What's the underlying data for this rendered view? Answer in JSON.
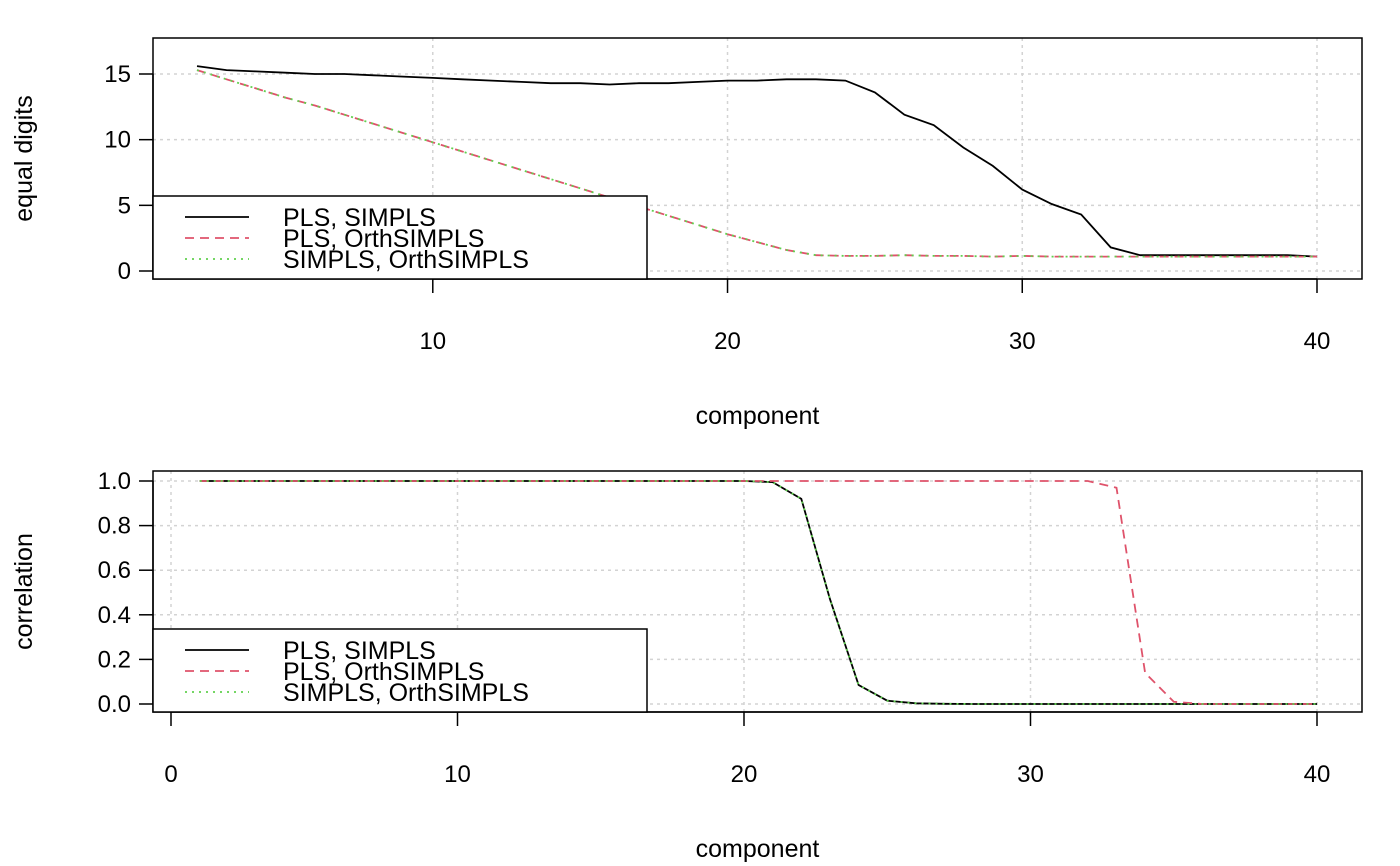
{
  "chart_data": [
    {
      "type": "line",
      "xlabel": "component",
      "ylabel": "equal digits",
      "xlim": [
        2,
        40
      ],
      "ylim": [
        0,
        15.5
      ],
      "xticks": [
        10,
        20,
        30,
        40
      ],
      "yticks": [
        0,
        5,
        10,
        15
      ],
      "grid": true,
      "legend_position": "bottom-left",
      "x": [
        2,
        3,
        4,
        5,
        6,
        7,
        8,
        9,
        10,
        11,
        12,
        13,
        14,
        15,
        16,
        17,
        18,
        19,
        20,
        21,
        22,
        23,
        24,
        25,
        26,
        27,
        28,
        29,
        30,
        31,
        32,
        33,
        34,
        35,
        36,
        37,
        38,
        39,
        40
      ],
      "series": [
        {
          "name": "PLS, SIMPLS",
          "color": "#000000",
          "dash": "solid",
          "values": [
            15.6,
            15.3,
            15.2,
            15.1,
            15.0,
            15.0,
            14.9,
            14.8,
            14.7,
            14.6,
            14.5,
            14.4,
            14.3,
            14.3,
            14.2,
            14.3,
            14.3,
            14.4,
            14.5,
            14.5,
            14.6,
            14.6,
            14.5,
            13.6,
            11.9,
            11.1,
            9.4,
            8.0,
            6.2,
            5.1,
            4.3,
            1.8,
            1.2,
            1.2,
            1.2,
            1.2,
            1.2,
            1.2,
            1.1
          ]
        },
        {
          "name": "PLS, OrthSIMPLS",
          "color": "#DF536B",
          "dash": "dashed",
          "values": [
            15.3,
            14.6,
            13.9,
            13.2,
            12.6,
            11.9,
            11.2,
            10.5,
            9.8,
            9.1,
            8.4,
            7.7,
            7.0,
            6.3,
            5.6,
            4.9,
            4.2,
            3.5,
            2.8,
            2.2,
            1.6,
            1.2,
            1.15,
            1.15,
            1.2,
            1.15,
            1.15,
            1.1,
            1.15,
            1.1,
            1.1,
            1.1,
            1.1,
            1.1,
            1.1,
            1.1,
            1.1,
            1.1,
            1.1
          ]
        },
        {
          "name": "SIMPLS, OrthSIMPLS",
          "color": "#61D04F",
          "dash": "dotted",
          "values": [
            15.3,
            14.6,
            13.9,
            13.2,
            12.6,
            11.9,
            11.2,
            10.5,
            9.8,
            9.1,
            8.4,
            7.7,
            7.0,
            6.3,
            5.6,
            4.9,
            4.2,
            3.5,
            2.8,
            2.2,
            1.6,
            1.2,
            1.15,
            1.15,
            1.2,
            1.15,
            1.15,
            1.1,
            1.15,
            1.1,
            1.1,
            1.1,
            1.1,
            1.1,
            1.1,
            1.1,
            1.1,
            1.1,
            1.1
          ]
        }
      ]
    },
    {
      "type": "line",
      "xlabel": "component",
      "ylabel": "correlation",
      "xlim": [
        1,
        40
      ],
      "ylim": [
        0,
        1
      ],
      "xticks": [
        0,
        10,
        20,
        30,
        40
      ],
      "yticks": [
        0.0,
        0.2,
        0.4,
        0.6,
        0.8,
        1.0
      ],
      "ytick_labels": [
        "0.0",
        "0.2",
        "0.4",
        "0.6",
        "0.8",
        "1.0"
      ],
      "grid": true,
      "legend_position": "bottom-left",
      "x": [
        1,
        2,
        3,
        4,
        5,
        6,
        7,
        8,
        9,
        10,
        11,
        12,
        13,
        14,
        15,
        16,
        17,
        18,
        19,
        20,
        21,
        22,
        23,
        24,
        25,
        26,
        27,
        28,
        29,
        30,
        31,
        32,
        33,
        34,
        35,
        36,
        37,
        38,
        39,
        40
      ],
      "series": [
        {
          "name": "PLS, SIMPLS",
          "color": "#000000",
          "dash": "solid",
          "values": [
            1,
            1,
            1,
            1,
            1,
            1,
            1,
            1,
            1,
            1,
            1,
            1,
            1,
            1,
            1,
            1,
            1,
            1,
            1,
            1,
            0.995,
            0.92,
            0.47,
            0.085,
            0.015,
            0.003,
            0.001,
            0,
            0,
            0,
            0,
            0,
            0,
            0,
            0,
            0,
            0,
            0,
            0,
            0
          ]
        },
        {
          "name": "PLS, OrthSIMPLS",
          "color": "#DF536B",
          "dash": "dashed",
          "values": [
            1,
            1,
            1,
            1,
            1,
            1,
            1,
            1,
            1,
            1,
            1,
            1,
            1,
            1,
            1,
            1,
            1,
            1,
            1,
            1,
            1,
            1,
            1,
            1,
            1,
            1,
            1,
            1,
            1,
            1,
            1,
            1,
            0.97,
            0.14,
            0.01,
            0,
            0,
            0,
            0,
            0
          ]
        },
        {
          "name": "SIMPLS, OrthSIMPLS",
          "color": "#61D04F",
          "dash": "dotted",
          "values": [
            1,
            1,
            1,
            1,
            1,
            1,
            1,
            1,
            1,
            1,
            1,
            1,
            1,
            1,
            1,
            1,
            1,
            1,
            1,
            1,
            0.995,
            0.92,
            0.47,
            0.085,
            0.015,
            0.003,
            0.001,
            0,
            0,
            0,
            0,
            0,
            0,
            0,
            0,
            0,
            0,
            0,
            0,
            0
          ]
        }
      ]
    }
  ]
}
